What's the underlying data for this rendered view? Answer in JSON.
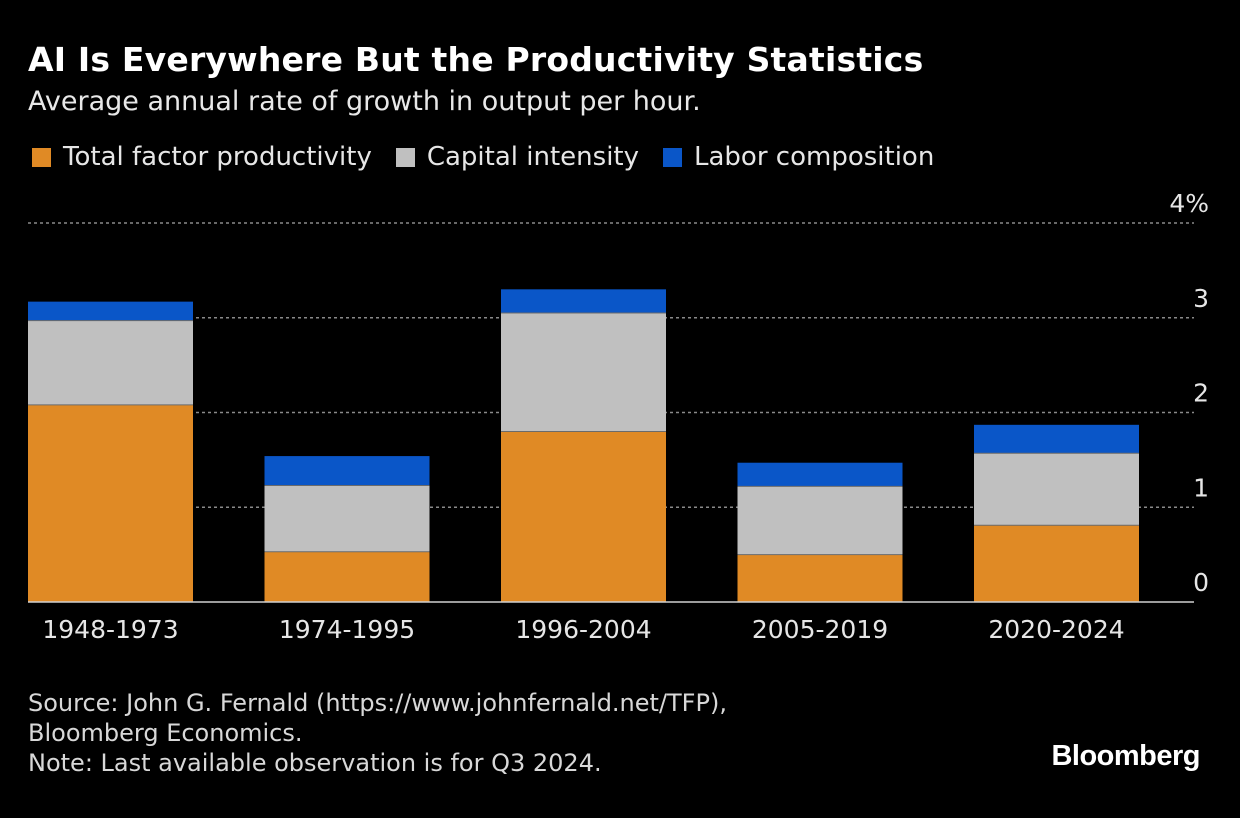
{
  "header": {
    "title": "AI Is Everywhere But the Productivity Statistics",
    "subtitle": "Average annual rate of growth in output per hour."
  },
  "chart_data": {
    "type": "bar",
    "stacked": true,
    "categories": [
      "1948-1973",
      "1974-1995",
      "1996-2004",
      "2005-2019",
      "2020-2024"
    ],
    "series": [
      {
        "name": "Total factor productivity",
        "color": "#e08a25",
        "values": [
          2.08,
          0.53,
          1.8,
          0.5,
          0.81
        ]
      },
      {
        "name": "Capital intensity",
        "color": "#c0c0c0",
        "values": [
          0.89,
          0.7,
          1.25,
          0.72,
          0.76
        ]
      },
      {
        "name": "Labor composition",
        "color": "#0a56c8",
        "values": [
          0.2,
          0.31,
          0.25,
          0.25,
          0.3
        ]
      }
    ],
    "yticks": [
      {
        "value": 0,
        "label": "0"
      },
      {
        "value": 1,
        "label": "1"
      },
      {
        "value": 2,
        "label": "2"
      },
      {
        "value": 3,
        "label": "3"
      },
      {
        "value": 4,
        "label": "4%"
      }
    ],
    "ylim": [
      0,
      4
    ],
    "grid": true,
    "legend": "top-left"
  },
  "footer": {
    "source_line1": "Source: John G. Fernald (https://www.johnfernald.net/TFP),",
    "source_line2": "Bloomberg Economics.",
    "note": "Note: Last available observation is for Q3 2024."
  },
  "brand": "Bloomberg"
}
